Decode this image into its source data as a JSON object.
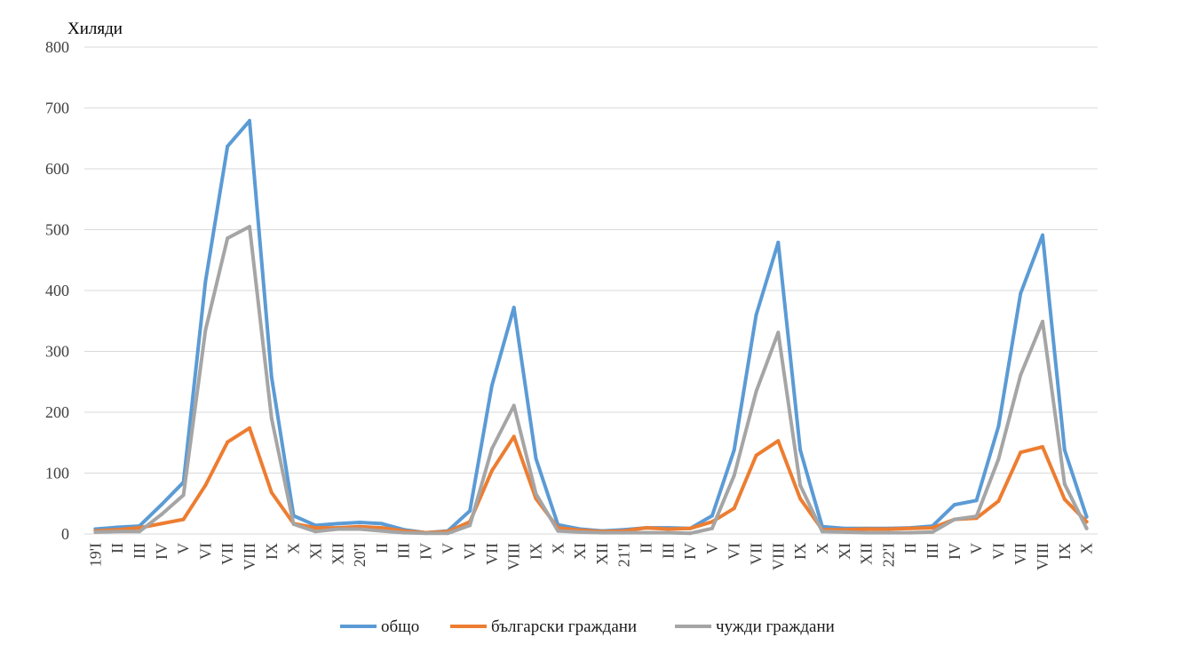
{
  "chart_data": {
    "type": "line",
    "unit_label": "Хиляди",
    "ylim": [
      0,
      800
    ],
    "yticks": [
      0,
      100,
      200,
      300,
      400,
      500,
      600,
      700,
      800
    ],
    "grid": true,
    "legend_position": "bottom",
    "categories": [
      "19'I",
      "II",
      "III",
      "IV",
      "V",
      "VI",
      "VII",
      "VIII",
      "IX",
      "X",
      "XI",
      "XII",
      "20'I",
      "II",
      "III",
      "IV",
      "V",
      "VI",
      "VII",
      "VIII",
      "IX",
      "X",
      "XI",
      "XII",
      "21'I",
      "II",
      "III",
      "IV",
      "V",
      "VI",
      "VII",
      "VIII",
      "IX",
      "X",
      "XI",
      "XII",
      "22'I",
      "II",
      "III",
      "IV",
      "V",
      "VI",
      "VII",
      "VIII",
      "IX",
      "X"
    ],
    "series": [
      {
        "name": "общо",
        "color": "#5b9bd5",
        "values": [
          8,
          11,
          13,
          48,
          85,
          415,
          637,
          679,
          258,
          30,
          14,
          17,
          19,
          17,
          7,
          2,
          5,
          38,
          244,
          372,
          124,
          15,
          8,
          5,
          7,
          10,
          10,
          9,
          30,
          138,
          360,
          479,
          138,
          12,
          9,
          9,
          9,
          10,
          13,
          48,
          55,
          177,
          395,
          491,
          138,
          28
        ]
      },
      {
        "name": "български граждани",
        "color": "#ed7d31",
        "values": [
          5,
          7,
          10,
          17,
          24,
          80,
          151,
          174,
          68,
          17,
          10,
          10,
          12,
          10,
          5,
          2,
          4,
          20,
          104,
          160,
          58,
          10,
          6,
          4,
          5,
          10,
          8,
          9,
          20,
          42,
          129,
          153,
          58,
          7,
          7,
          8,
          8,
          9,
          10,
          24,
          26,
          54,
          134,
          143,
          57,
          20
        ]
      },
      {
        "name": "чужди граждани",
        "color": "#a5a5a5",
        "values": [
          3,
          4,
          4,
          32,
          64,
          335,
          486,
          505,
          190,
          16,
          4,
          8,
          8,
          5,
          2,
          1,
          1,
          14,
          140,
          211,
          66,
          5,
          3,
          2,
          2,
          2,
          2,
          1,
          9,
          96,
          234,
          331,
          80,
          4,
          3,
          2,
          2,
          2,
          3,
          24,
          29,
          123,
          261,
          349,
          82,
          9
        ]
      }
    ]
  }
}
